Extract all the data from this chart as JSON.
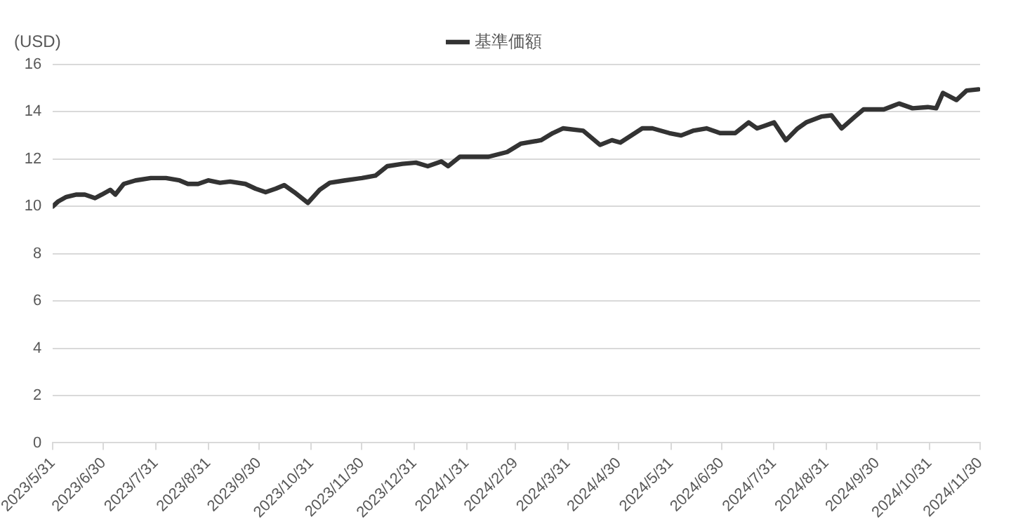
{
  "chart_data": {
    "type": "line",
    "ylabel": "(USD)",
    "x": [
      "2023-05-31",
      "2023-06-03",
      "2023-06-08",
      "2023-06-14",
      "2023-06-19",
      "2023-06-25",
      "2023-06-29",
      "2023-07-04",
      "2023-07-07",
      "2023-07-12",
      "2023-07-19",
      "2023-07-28",
      "2023-08-06",
      "2023-08-14",
      "2023-08-19",
      "2023-08-25",
      "2023-08-31",
      "2023-09-07",
      "2023-09-13",
      "2023-09-22",
      "2023-09-28",
      "2023-10-04",
      "2023-10-10",
      "2023-10-15",
      "2023-10-21",
      "2023-10-29",
      "2023-11-05",
      "2023-11-11",
      "2023-11-20",
      "2023-11-30",
      "2023-12-08",
      "2023-12-15",
      "2023-12-24",
      "2024-01-01",
      "2024-01-08",
      "2024-01-16",
      "2024-01-20",
      "2024-01-27",
      "2024-02-04",
      "2024-02-13",
      "2024-02-24",
      "2024-03-03",
      "2024-03-15",
      "2024-03-22",
      "2024-03-28",
      "2024-04-09",
      "2024-04-19",
      "2024-04-26",
      "2024-05-01",
      "2024-05-14",
      "2024-05-20",
      "2024-05-30",
      "2024-06-06",
      "2024-06-13",
      "2024-06-21",
      "2024-06-29",
      "2024-07-08",
      "2024-07-16",
      "2024-07-21",
      "2024-07-25",
      "2024-07-31",
      "2024-08-07",
      "2024-08-14",
      "2024-08-19",
      "2024-08-28",
      "2024-09-03",
      "2024-09-09",
      "2024-09-17",
      "2024-09-22",
      "2024-10-04",
      "2024-10-13",
      "2024-10-21",
      "2024-10-30",
      "2024-11-04",
      "2024-11-08",
      "2024-11-16",
      "2024-11-22",
      "2024-11-29"
    ],
    "series": [
      {
        "name": "基準価額",
        "color": "#333333",
        "values": [
          10.0,
          10.2,
          10.4,
          10.5,
          10.5,
          10.35,
          10.5,
          10.7,
          10.5,
          10.95,
          11.1,
          11.2,
          11.2,
          11.1,
          10.95,
          10.95,
          11.1,
          11.0,
          11.05,
          10.95,
          10.75,
          10.6,
          10.75,
          10.9,
          10.6,
          10.15,
          10.7,
          11.0,
          11.1,
          11.2,
          11.3,
          11.7,
          11.8,
          11.85,
          11.7,
          11.9,
          11.7,
          12.1,
          12.1,
          12.1,
          12.3,
          12.65,
          12.8,
          13.1,
          13.3,
          13.2,
          12.6,
          12.8,
          12.7,
          13.3,
          13.3,
          13.1,
          13.0,
          13.2,
          13.3,
          13.1,
          13.1,
          13.55,
          13.3,
          13.4,
          13.55,
          12.8,
          13.3,
          13.55,
          13.8,
          13.85,
          13.3,
          13.8,
          14.1,
          14.1,
          14.35,
          14.15,
          14.2,
          14.15,
          14.8,
          14.5,
          14.9,
          14.95
        ]
      }
    ],
    "xlim": [
      "2023-05-31",
      "2024-11-30"
    ],
    "xticks": [
      {
        "value": "2023-05-31",
        "label": "2023/5/31"
      },
      {
        "value": "2023-06-30",
        "label": "2023/6/30"
      },
      {
        "value": "2023-07-31",
        "label": "2023/7/31"
      },
      {
        "value": "2023-08-31",
        "label": "2023/8/31"
      },
      {
        "value": "2023-09-30",
        "label": "2023/9/30"
      },
      {
        "value": "2023-10-31",
        "label": "2023/10/31"
      },
      {
        "value": "2023-11-30",
        "label": "2023/11/30"
      },
      {
        "value": "2023-12-31",
        "label": "2023/12/31"
      },
      {
        "value": "2024-01-31",
        "label": "2024/1/31"
      },
      {
        "value": "2024-02-29",
        "label": "2024/2/29"
      },
      {
        "value": "2024-03-31",
        "label": "2024/3/31"
      },
      {
        "value": "2024-04-30",
        "label": "2024/4/30"
      },
      {
        "value": "2024-05-31",
        "label": "2024/5/31"
      },
      {
        "value": "2024-06-30",
        "label": "2024/6/30"
      },
      {
        "value": "2024-07-31",
        "label": "2024/7/31"
      },
      {
        "value": "2024-08-31",
        "label": "2024/8/31"
      },
      {
        "value": "2024-09-30",
        "label": "2024/9/30"
      },
      {
        "value": "2024-10-31",
        "label": "2024/10/31"
      },
      {
        "value": "2024-11-30",
        "label": "2024/11/30"
      }
    ],
    "ylim": [
      0,
      16
    ],
    "yticks": [
      0,
      2,
      4,
      6,
      8,
      10,
      12,
      14,
      16
    ],
    "grid": "y",
    "legend": "top",
    "marker": "none",
    "line_style": "solid"
  }
}
